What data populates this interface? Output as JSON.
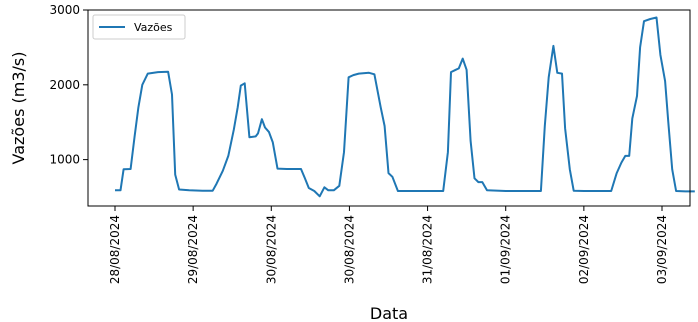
{
  "chart_data": {
    "type": "line",
    "title": "",
    "xlabel": "Data",
    "ylabel": "Vazões (m3/s)",
    "ylim": [
      380,
      3000
    ],
    "yticks": [
      1000,
      2000,
      3000
    ],
    "ytick_labels": [
      "1000",
      "2000",
      "3000"
    ],
    "xlim": [
      -0.35,
      7.2
    ],
    "xticks": [
      0,
      1,
      2,
      3,
      4,
      5,
      6,
      7
    ],
    "xtick_labels": [
      "28/08/2024",
      "29/08/2024",
      "30/08/2024",
      "30/08/2024",
      "31/08/2024",
      "01/09/2024",
      "02/09/2024",
      "03/09/2024"
    ],
    "grid": false,
    "legend": {
      "position": "top-left"
    },
    "series": [
      {
        "name": "Vazões",
        "color": "#1f77b4",
        "points": [
          [
            0.0,
            590
          ],
          [
            0.07,
            590
          ],
          [
            0.11,
            870
          ],
          [
            0.2,
            875
          ],
          [
            0.25,
            1300
          ],
          [
            0.3,
            1700
          ],
          [
            0.35,
            2000
          ],
          [
            0.42,
            2150
          ],
          [
            0.55,
            2170
          ],
          [
            0.68,
            2175
          ],
          [
            0.73,
            1870
          ],
          [
            0.77,
            800
          ],
          [
            0.82,
            600
          ],
          [
            0.95,
            590
          ],
          [
            1.12,
            585
          ],
          [
            1.25,
            585
          ],
          [
            1.3,
            680
          ],
          [
            1.38,
            850
          ],
          [
            1.45,
            1050
          ],
          [
            1.52,
            1400
          ],
          [
            1.57,
            1700
          ],
          [
            1.61,
            1990
          ],
          [
            1.66,
            2020
          ],
          [
            1.72,
            1300
          ],
          [
            1.8,
            1310
          ],
          [
            1.83,
            1350
          ],
          [
            1.88,
            1540
          ],
          [
            1.92,
            1430
          ],
          [
            1.97,
            1370
          ],
          [
            2.02,
            1230
          ],
          [
            2.08,
            880
          ],
          [
            2.2,
            875
          ],
          [
            2.38,
            875
          ],
          [
            2.43,
            750
          ],
          [
            2.48,
            620
          ],
          [
            2.55,
            580
          ],
          [
            2.62,
            510
          ],
          [
            2.68,
            630
          ],
          [
            2.73,
            590
          ],
          [
            2.8,
            590
          ],
          [
            2.87,
            650
          ],
          [
            2.93,
            1100
          ],
          [
            2.99,
            2100
          ],
          [
            3.05,
            2130
          ],
          [
            3.12,
            2150
          ],
          [
            3.25,
            2160
          ],
          [
            3.32,
            2140
          ],
          [
            3.4,
            1700
          ],
          [
            3.45,
            1450
          ],
          [
            3.5,
            820
          ],
          [
            3.55,
            770
          ],
          [
            3.62,
            580
          ],
          [
            3.85,
            580
          ],
          [
            4.2,
            580
          ],
          [
            4.26,
            1100
          ],
          [
            4.3,
            2170
          ],
          [
            4.36,
            2200
          ],
          [
            4.4,
            2220
          ],
          [
            4.45,
            2350
          ],
          [
            4.5,
            2200
          ],
          [
            4.55,
            1250
          ],
          [
            4.6,
            750
          ],
          [
            4.65,
            700
          ],
          [
            4.7,
            700
          ],
          [
            4.76,
            590
          ],
          [
            5.0,
            580
          ],
          [
            5.45,
            580
          ],
          [
            5.5,
            1450
          ],
          [
            5.55,
            2100
          ],
          [
            5.61,
            2520
          ],
          [
            5.66,
            2160
          ],
          [
            5.72,
            2150
          ],
          [
            5.76,
            1420
          ],
          [
            5.82,
            870
          ],
          [
            5.87,
            585
          ],
          [
            6.0,
            580
          ],
          [
            6.2,
            580
          ],
          [
            6.35,
            580
          ],
          [
            6.42,
            820
          ],
          [
            6.48,
            960
          ],
          [
            6.53,
            1050
          ],
          [
            6.58,
            1050
          ],
          [
            6.62,
            1550
          ],
          [
            6.68,
            1850
          ],
          [
            6.72,
            2500
          ],
          [
            6.77,
            2850
          ],
          [
            6.85,
            2880
          ],
          [
            6.93,
            2900
          ],
          [
            6.98,
            2400
          ],
          [
            7.04,
            2050
          ],
          [
            7.08,
            1500
          ],
          [
            7.13,
            870
          ],
          [
            7.18,
            580
          ],
          [
            7.3,
            575
          ],
          [
            7.42,
            575
          ]
        ]
      }
    ]
  }
}
